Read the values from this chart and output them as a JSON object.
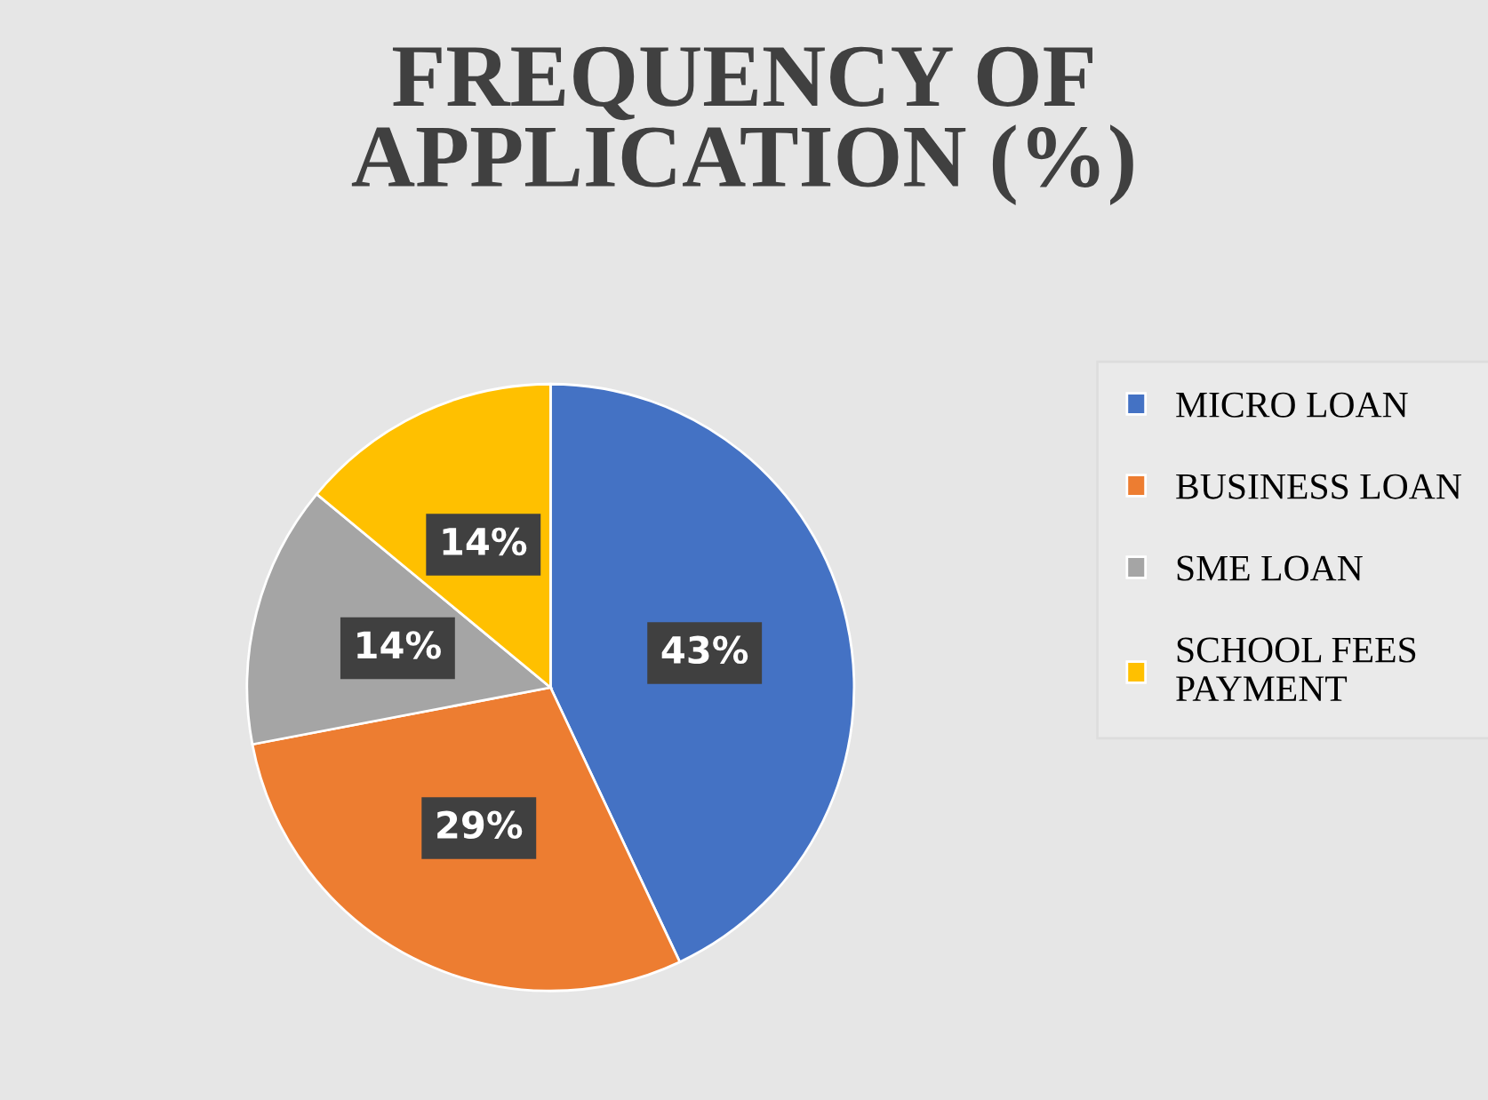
{
  "chart_data": {
    "type": "pie",
    "title": "FREQUENCY OF\nAPPLICATION (%)",
    "categories": [
      "MICRO LOAN",
      "BUSINESS LOAN",
      "SME LOAN",
      "SCHOOL FEES\nPAYMENT"
    ],
    "values": [
      43,
      29,
      14,
      14
    ],
    "value_labels": [
      "43%",
      "29%",
      "14%",
      "14%"
    ],
    "colors": [
      "#4472c4",
      "#ed7d31",
      "#a5a5a5",
      "#ffc000"
    ],
    "legend": "right"
  }
}
